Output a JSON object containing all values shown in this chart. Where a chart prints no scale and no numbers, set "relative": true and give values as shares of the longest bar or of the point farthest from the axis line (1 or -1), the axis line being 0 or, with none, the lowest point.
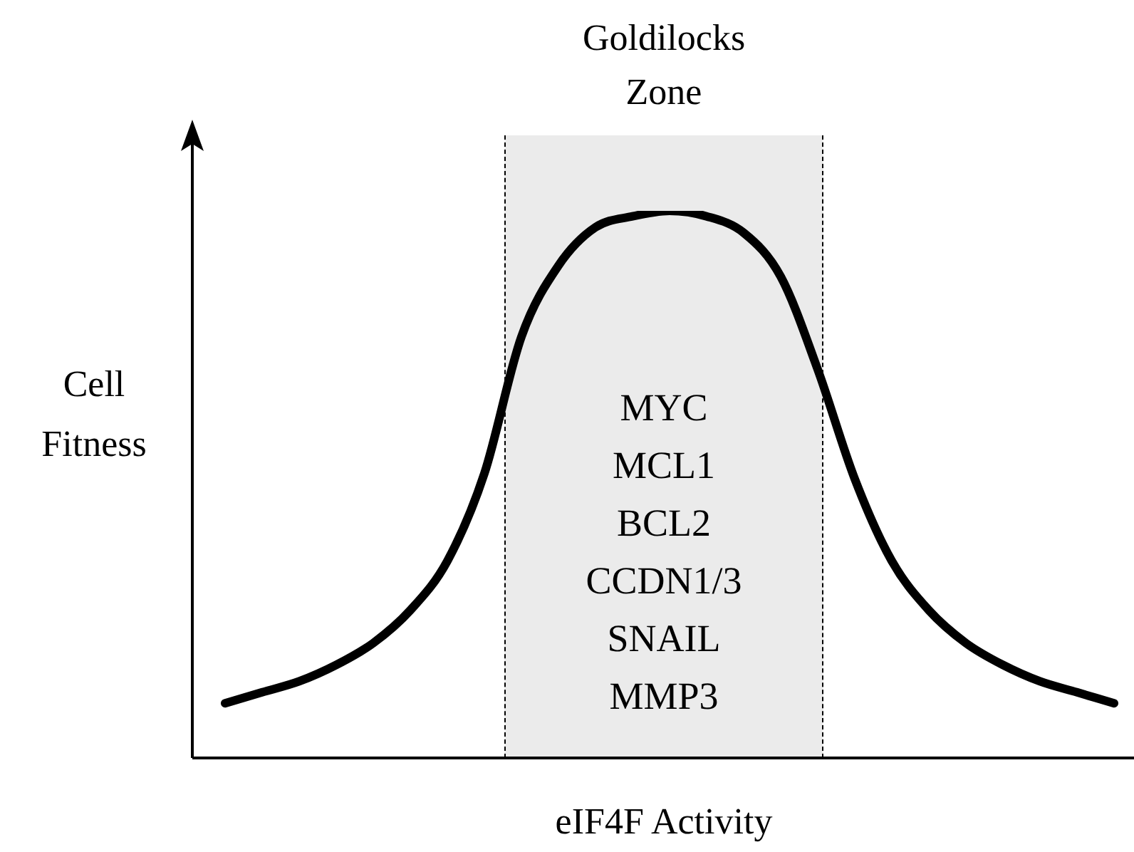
{
  "chart_data": {
    "type": "line",
    "relative": true,
    "xlabel": "eIF4F Activity",
    "ylabel": "Cell Fitness",
    "categories": [
      null,
      null,
      null,
      null,
      null,
      null,
      null,
      null,
      null,
      null,
      null,
      null,
      null,
      null,
      null,
      null,
      null,
      null,
      null,
      null,
      null,
      null,
      null,
      null,
      null
    ],
    "series": [
      {
        "color": "#000000",
        "values": [
          0.1,
          0.12,
          0.14,
          0.17,
          0.21,
          0.27,
          0.36,
          0.52,
          0.77,
          0.9,
          0.97,
          0.99,
          1,
          0.99,
          0.96,
          0.88,
          0.71,
          0.51,
          0.36,
          0.27,
          0.21,
          0.17,
          0.14,
          0.12,
          0.1
        ]
      }
    ],
    "annotations": [
      "Goldilocks Zone",
      "MYC",
      "MCL1",
      "BCL2",
      "CCDN1/3",
      "SNAIL",
      "MMP3"
    ],
    "marker": "none",
    "line_style": "solid",
    "legend": false
  }
}
